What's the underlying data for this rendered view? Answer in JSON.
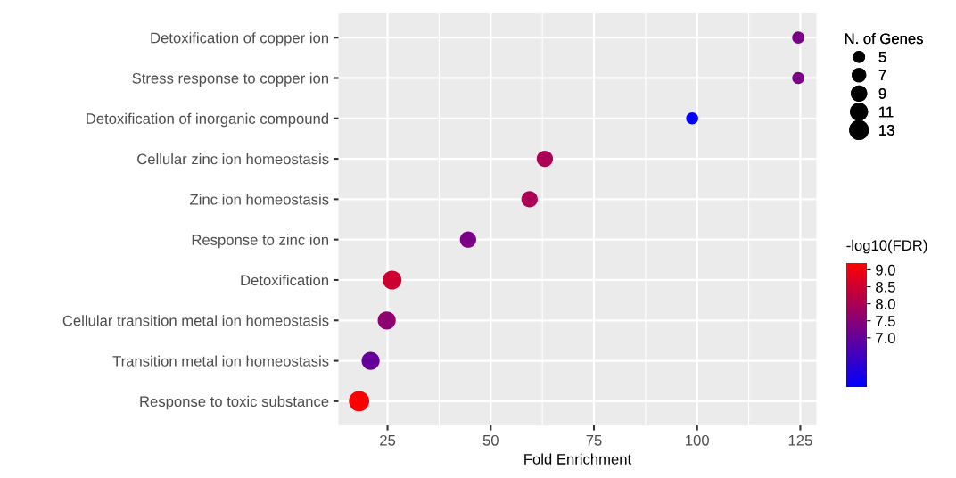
{
  "chart_data": {
    "type": "bubble",
    "orientation": "horizontal",
    "xlabel": "Fold Enrichment",
    "legend_title": "N. of Genes",
    "clabel": "-log10(FDR)",
    "categories": [
      "Detoxification of copper ion",
      "Stress response to copper ion",
      "Detoxification of inorganic compound",
      "Cellular zinc ion homeostasis",
      "Zinc ion homeostasis",
      "Response to zinc ion",
      "Detoxification",
      "Cellular transition metal ion homeostasis",
      "Transition metal ion homeostasis",
      "Response to toxic substance"
    ],
    "values": [
      124.5,
      124.5,
      98.8,
      63.1,
      59.4,
      44.5,
      26.1,
      24.8,
      20.9,
      18.1
    ],
    "sizes": [
      5,
      5,
      5,
      9,
      9,
      9,
      12,
      11,
      11,
      14
    ],
    "cvalues": [
      7.3,
      7.3,
      5.6,
      8.0,
      8.0,
      7.3,
      8.5,
      7.6,
      7.0,
      9.2
    ],
    "size_legend": [
      5,
      7,
      9,
      11,
      13
    ],
    "clim": [
      5.55,
      9.2
    ],
    "cticks": [
      {
        "value": 7.0,
        "label": "7.0"
      },
      {
        "value": 7.5,
        "label": "7.5"
      },
      {
        "value": 8.0,
        "label": "8.0"
      },
      {
        "value": 8.5,
        "label": "8.5"
      },
      {
        "value": 9.0,
        "label": "9.0"
      }
    ],
    "xlim": [
      13.1,
      128.9
    ],
    "xticks": [
      25,
      50,
      75,
      100,
      125
    ],
    "grid": true
  }
}
